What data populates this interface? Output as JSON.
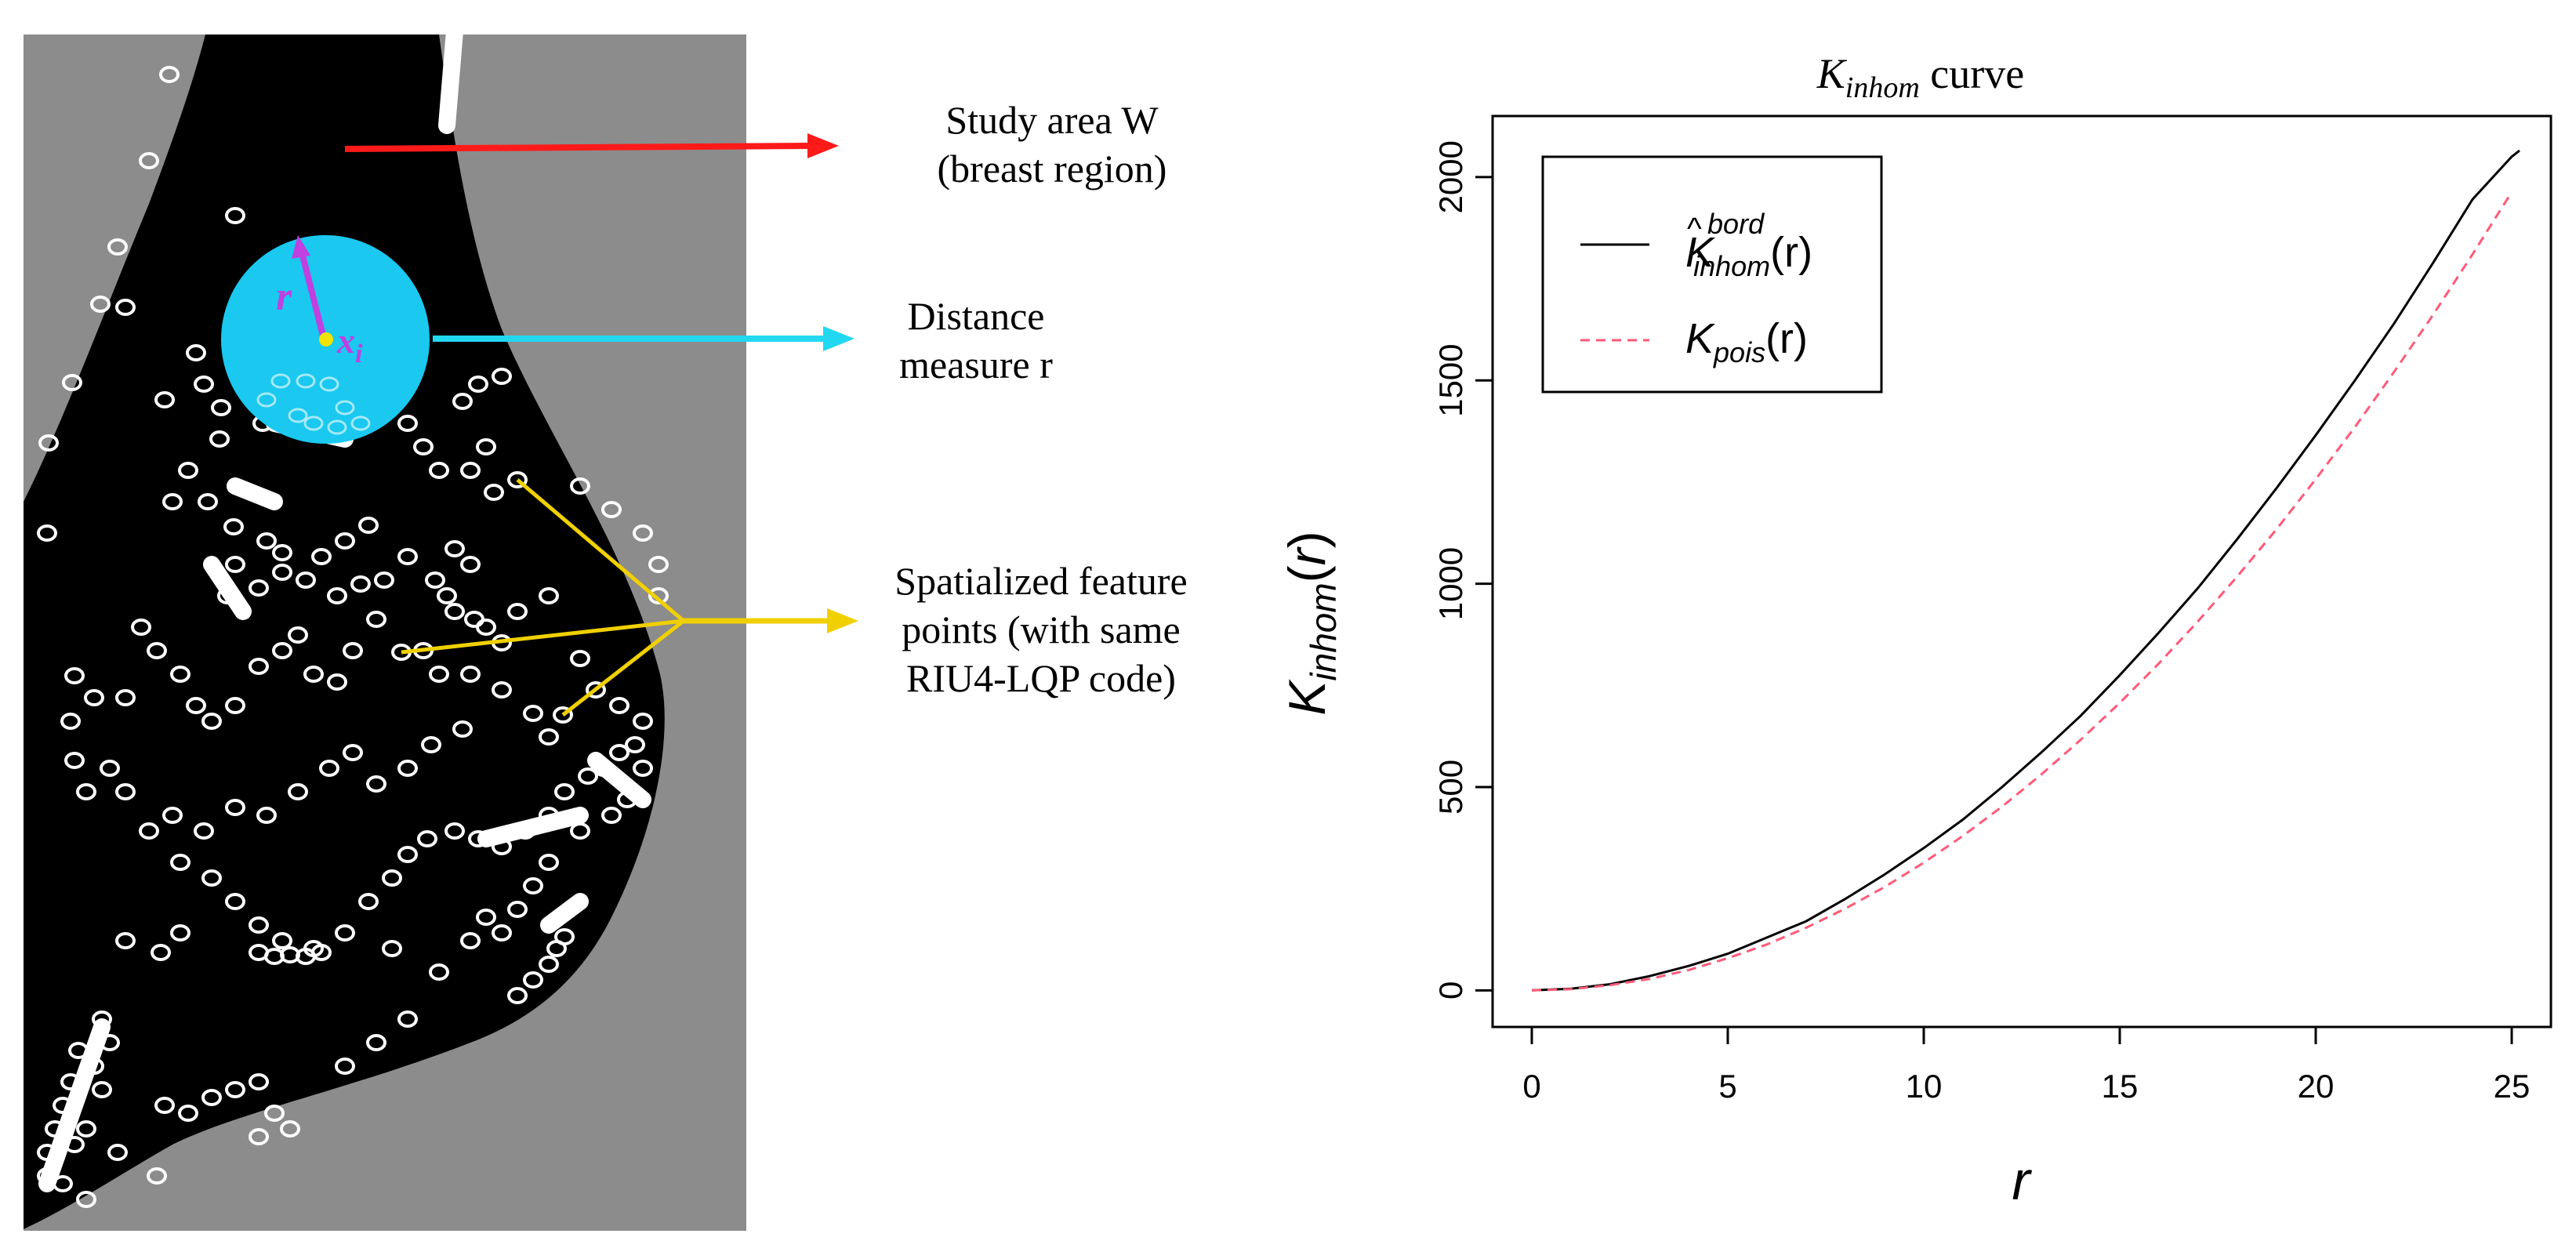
{
  "colors": {
    "panel_bg": "#8c8c8c",
    "region": "#000000",
    "points": "#ffffff",
    "circle": "#1ac8f0",
    "radius_arrow": "#c040e0",
    "center_dot": "#f0e400",
    "arrow_red": "#ff1a1a",
    "arrow_cyan": "#22d8f0",
    "line_yellow": "#f0d000",
    "curve_observed": "#000000",
    "curve_poisson": "#ff5a78"
  },
  "annotations": {
    "study_area": {
      "line1": "Study area W",
      "line2": "(breast region)"
    },
    "distance": {
      "line1": "Distance",
      "line2": "measure r"
    },
    "features": {
      "line1": "Spatialized feature",
      "line2": "points (with same",
      "line3": "RIU4-LQP code)"
    },
    "radius_label": "r",
    "center_label": "x_i"
  },
  "chart_data": {
    "type": "line",
    "title": "K_inhom curve",
    "title_main": "K",
    "title_sub": "inhom",
    "title_rest": " curve",
    "xlabel": "r",
    "ylabel": "K_inhom(r)",
    "xlim": [
      -1,
      26
    ],
    "ylim": [
      -90,
      2150
    ],
    "xticks": [
      0,
      5,
      10,
      15,
      20,
      25
    ],
    "yticks": [
      0,
      500,
      1000,
      1500,
      2000
    ],
    "legend_position": "top-left",
    "series": [
      {
        "name": "K^bord_inhom(r)",
        "legend_main": "K",
        "legend_sup": "bord",
        "legend_sub": "inhom",
        "legend_arg": "(r)",
        "style": "solid",
        "x": [
          0,
          1,
          2,
          3,
          4,
          5,
          6,
          7,
          8,
          9,
          10,
          11,
          12,
          13,
          14,
          15,
          16,
          17,
          18,
          19,
          20,
          21,
          22,
          23,
          24,
          25,
          25.2
        ],
        "y": [
          0,
          4,
          15,
          35,
          60,
          90,
          130,
          170,
          225,
          285,
          350,
          420,
          500,
          585,
          675,
          775,
          880,
          990,
          1110,
          1235,
          1365,
          1500,
          1640,
          1790,
          1945,
          2050,
          2065
        ]
      },
      {
        "name": "K_pois(r)",
        "legend_main": "K",
        "legend_sub": "pois",
        "legend_arg": "(r)",
        "style": "dashed",
        "x": [
          0,
          1,
          2,
          3,
          4,
          5,
          6,
          7,
          8,
          9,
          10,
          11,
          12,
          13,
          14,
          15,
          16,
          17,
          18,
          19,
          20,
          21,
          22,
          23,
          24,
          25
        ],
        "y": [
          0,
          3,
          13,
          28,
          50,
          79,
          113,
          154,
          201,
          254,
          314,
          380,
          452,
          531,
          616,
          707,
          804,
          908,
          1018,
          1134,
          1257,
          1385,
          1521,
          1662,
          1810,
          1963
        ]
      }
    ]
  }
}
